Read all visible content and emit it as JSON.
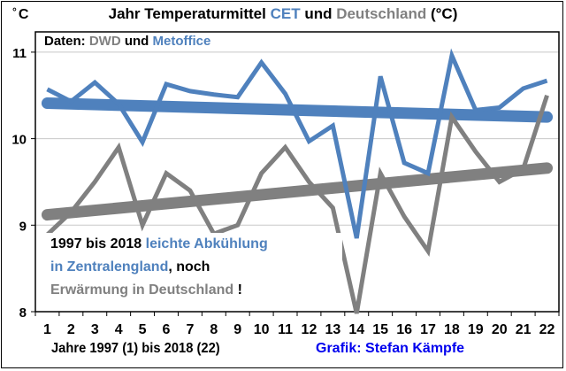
{
  "colors": {
    "cet": "#4f81bd",
    "germany": "#808080",
    "credit": "#0000ee",
    "text": "#000000",
    "grid": "#c8c8c8"
  },
  "header": {
    "unit_degree": "°",
    "unit_letter": "C",
    "title_part1": "Jahr Temperaturmittel ",
    "title_cet": "CET",
    "title_part2": " und ",
    "title_de": "Deutschland",
    "title_part3": " (°C)"
  },
  "source": {
    "prefix": "Daten: ",
    "dwd": "DWD",
    "und": " und ",
    "metoffice": "Metoffice"
  },
  "annotation": {
    "line1_black": "1997 bis 2018 ",
    "line1_blue": "leichte Abkühlung",
    "line2_blue": "in Zentralengland",
    "line2_black": ", noch",
    "line3_gray": "Erwärmung in Deutschland ",
    "line3_black": "!"
  },
  "footer": {
    "xlabel": "Jahre 1997 (1) bis 2018 (22)",
    "credit": "Grafik: Stefan Kämpfe"
  },
  "chart_data": {
    "type": "line",
    "title": "Jahr Temperaturmittel CET und Deutschland (°C)",
    "xlabel": "Jahre 1997 (1) bis 2018 (22)",
    "ylabel": "° C",
    "x": [
      1,
      2,
      3,
      4,
      5,
      6,
      7,
      8,
      9,
      10,
      11,
      12,
      13,
      14,
      15,
      16,
      17,
      18,
      19,
      20,
      21,
      22
    ],
    "x_tick_labels": [
      "1",
      "2",
      "3",
      "4",
      "5",
      "6",
      "7",
      "8",
      "9",
      "10",
      "11",
      "12",
      "13",
      "14",
      "15",
      "16",
      "17",
      "18",
      "19",
      "20",
      "21",
      "22"
    ],
    "y_tick_labels": [
      "11",
      "10",
      "9",
      "8"
    ],
    "y_ticks": [
      11,
      10,
      9,
      8
    ],
    "ylim": [
      8,
      11.2
    ],
    "grid": true,
    "series": [
      {
        "name": "CET",
        "color": "#4f81bd",
        "values": [
          10.57,
          10.43,
          10.65,
          10.4,
          9.96,
          10.63,
          10.55,
          10.51,
          10.48,
          10.88,
          10.52,
          9.97,
          10.15,
          8.85,
          10.72,
          9.72,
          9.6,
          10.96,
          10.33,
          10.36,
          10.58,
          10.67
        ]
      },
      {
        "name": "Deutschland",
        "color": "#808080",
        "values": [
          8.89,
          9.15,
          9.5,
          9.9,
          9.0,
          9.6,
          9.4,
          8.9,
          9.0,
          9.6,
          9.9,
          9.5,
          9.2,
          7.98,
          9.6,
          9.1,
          8.7,
          10.25,
          9.85,
          9.5,
          9.65,
          10.5
        ]
      }
    ],
    "trends": [
      {
        "name": "CET Trend",
        "color": "#4f81bd",
        "start": 10.41,
        "end": 10.25
      },
      {
        "name": "Deutschland Trend",
        "color": "#808080",
        "start": 9.12,
        "end": 9.66
      }
    ]
  }
}
